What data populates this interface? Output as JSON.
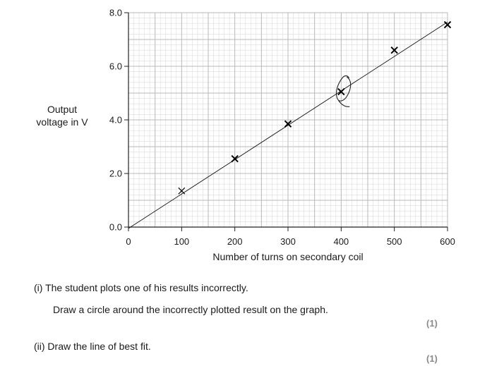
{
  "chart_data": {
    "type": "scatter",
    "xlabel": "Number of turns on secondary coil",
    "ylabel_lines": [
      "Output",
      "voltage in V"
    ],
    "xlim": [
      0,
      600
    ],
    "ylim": [
      0,
      8
    ],
    "x_ticks": [
      0,
      100,
      200,
      300,
      400,
      500,
      600
    ],
    "x_tick_labels": [
      "0",
      "100",
      "200",
      "300",
      "400",
      "500",
      "600"
    ],
    "y_ticks": [
      0,
      2,
      4,
      6,
      8
    ],
    "y_tick_labels": [
      "0.0",
      "2.0",
      "4.0",
      "6.0",
      "8.0"
    ],
    "grid": true,
    "points": [
      {
        "x": 100,
        "y": 1.35
      },
      {
        "x": 200,
        "y": 2.55
      },
      {
        "x": 300,
        "y": 3.85
      },
      {
        "x": 400,
        "y": 5.05
      },
      {
        "x": 500,
        "y": 6.6
      },
      {
        "x": 600,
        "y": 7.55
      }
    ],
    "best_fit_line": [
      {
        "x": 0,
        "y": -0.05
      },
      {
        "x": 600,
        "y": 7.65
      }
    ],
    "circled_point_index": 3
  },
  "questions": {
    "part_i_line1": "(i)  The student plots one of his results incorrectly.",
    "part_i_line2": "Draw a circle around the incorrectly plotted result on the graph.",
    "part_i_marks": "(1)",
    "part_ii": "(ii)  Draw the line of best fit.",
    "part_ii_marks": "(1)"
  }
}
